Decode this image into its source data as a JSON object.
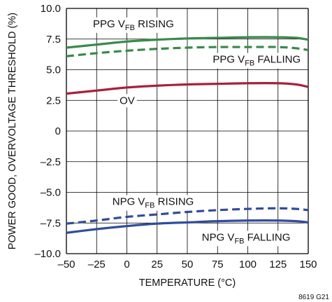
{
  "chart_data": {
    "type": "line",
    "title": "",
    "xlabel": "TEMPERATURE (°C)",
    "ylabel": "POWER GOOD, OVERVOLTAGE THRESHOLD (%)",
    "xlim": [
      -50,
      150
    ],
    "ylim": [
      -10,
      10
    ],
    "x_ticks": [
      "–50",
      "–25",
      "0",
      "25",
      "50",
      "75",
      "100",
      "125",
      "150"
    ],
    "y_ticks": [
      "10.0",
      "7.5",
      "5.0",
      "2.5",
      "0",
      "–2.5",
      "–5.0",
      "–7.5",
      "–10.0"
    ],
    "grid": true,
    "figure_code": "8619 G21",
    "colors": {
      "green": "#3a8a4a",
      "red": "#a8203c",
      "blue": "#2f4c9e",
      "grid": "#000000"
    },
    "series": [
      {
        "key": "ppg_rising",
        "color": "#3a8a4a",
        "dash": "solid",
        "x": [
          -50,
          -25,
          0,
          25,
          50,
          75,
          100,
          125,
          140,
          150
        ],
        "y": [
          6.8,
          7.05,
          7.3,
          7.45,
          7.55,
          7.6,
          7.65,
          7.65,
          7.6,
          7.45
        ]
      },
      {
        "key": "ppg_falling",
        "color": "#3a8a4a",
        "dash": "dashed",
        "x": [
          -50,
          -25,
          0,
          25,
          50,
          75,
          100,
          125,
          140,
          150
        ],
        "y": [
          6.1,
          6.35,
          6.55,
          6.7,
          6.8,
          6.85,
          6.85,
          6.85,
          6.75,
          6.6
        ]
      },
      {
        "key": "ov",
        "color": "#a8203c",
        "dash": "solid",
        "x": [
          -50,
          -25,
          0,
          25,
          50,
          75,
          100,
          125,
          140,
          150
        ],
        "y": [
          3.05,
          3.3,
          3.55,
          3.7,
          3.8,
          3.85,
          3.9,
          3.9,
          3.8,
          3.6
        ]
      },
      {
        "key": "npg_rising",
        "color": "#2f4c9e",
        "dash": "dashed",
        "x": [
          -50,
          -25,
          0,
          25,
          50,
          75,
          100,
          125,
          140,
          150
        ],
        "y": [
          -7.55,
          -7.3,
          -7.0,
          -6.8,
          -6.6,
          -6.45,
          -6.35,
          -6.3,
          -6.35,
          -6.45
        ]
      },
      {
        "key": "npg_falling",
        "color": "#2f4c9e",
        "dash": "solid",
        "x": [
          -50,
          -25,
          0,
          25,
          50,
          75,
          100,
          125,
          140,
          150
        ],
        "y": [
          -8.3,
          -8.0,
          -7.75,
          -7.55,
          -7.45,
          -7.35,
          -7.3,
          -7.3,
          -7.35,
          -7.45
        ]
      }
    ],
    "annotations": [
      {
        "key": "ppg_rising",
        "main": "PPG V",
        "sub": "FB",
        "rest": " RISING",
        "x": -28,
        "y": 8.75
      },
      {
        "key": "ppg_falling",
        "main": "PPG V",
        "sub": "FB",
        "rest": " FALLING",
        "x": 71,
        "y": 5.85
      },
      {
        "key": "ov",
        "main": "OV",
        "sub": "",
        "rest": "",
        "x": -6,
        "y": 2.5
      },
      {
        "key": "npg_rising",
        "main": "NPG V",
        "sub": "FB",
        "rest": " RISING",
        "x": -12,
        "y": -5.75
      },
      {
        "key": "npg_falling",
        "main": "NPG V",
        "sub": "FB",
        "rest": " FALLING",
        "x": 62,
        "y": -8.65
      }
    ]
  }
}
